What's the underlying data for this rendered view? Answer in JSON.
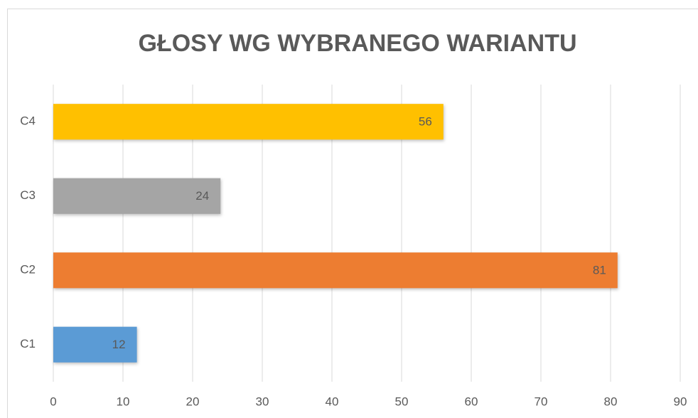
{
  "chart_data": {
    "type": "bar",
    "orientation": "horizontal",
    "title": "GŁOSY WG WYBRANEGO WARIANTU",
    "categories": [
      "C1",
      "C2",
      "C3",
      "C4"
    ],
    "values": [
      12,
      81,
      24,
      56
    ],
    "colors": [
      "#5b9bd5",
      "#ed7d31",
      "#a5a5a5",
      "#ffc000"
    ],
    "xlim": [
      0,
      90
    ],
    "xticks": [
      0,
      10,
      20,
      30,
      40,
      50,
      60,
      70,
      80,
      90
    ],
    "grid": true
  }
}
